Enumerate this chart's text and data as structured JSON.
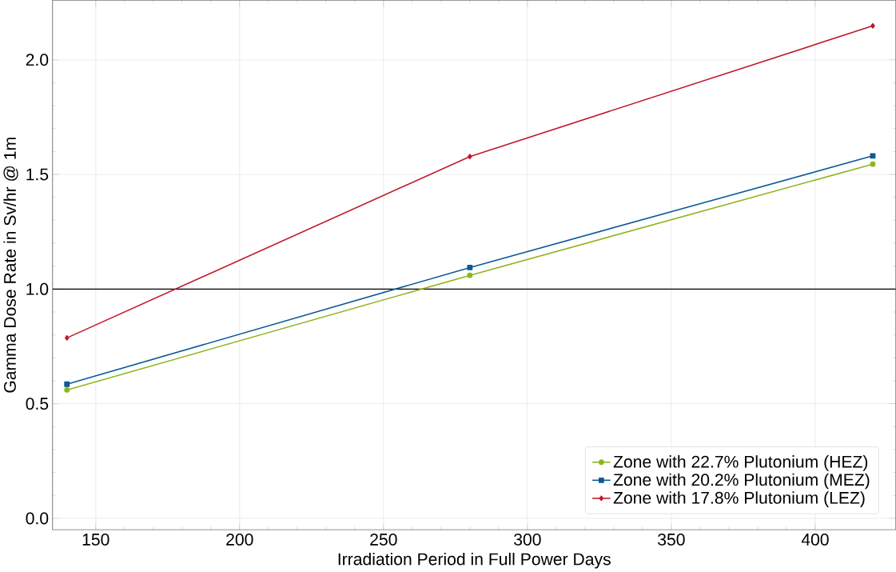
{
  "chart_data": {
    "type": "line",
    "xlabel": "Irradiation Period in Full Power Days",
    "ylabel": "Gamma Dose Rate in Sv/hr @ 1m",
    "x": [
      140,
      280,
      420
    ],
    "series": [
      {
        "name": "Zone with 22.7% Plutonium (HEZ)",
        "color": "#8db51e",
        "marker": "circle",
        "values": [
          0.56,
          1.06,
          1.545
        ]
      },
      {
        "name": "Zone with 20.2% Plutonium (MEZ)",
        "color": "#0c5a96",
        "marker": "square",
        "values": [
          0.585,
          1.094,
          1.581
        ]
      },
      {
        "name": "Zone with 17.8% Plutonium (LEZ)",
        "color": "#c0182a",
        "marker": "diamond",
        "values": [
          0.787,
          1.578,
          2.148
        ]
      }
    ],
    "xlim": [
      135,
      428
    ],
    "ylim": [
      -0.05,
      2.26
    ],
    "xticks": [
      150,
      200,
      250,
      300,
      350,
      400
    ],
    "yticks": [
      {
        "value": 0,
        "label": "0.0"
      },
      {
        "value": 0.5,
        "label": "0.5"
      },
      {
        "value": 1,
        "label": "1.0"
      },
      {
        "value": 1.5,
        "label": "1.5"
      },
      {
        "value": 2,
        "label": "2.0"
      }
    ],
    "ref_lines": [
      {
        "axis": "y",
        "value": 1.0,
        "color": "#000000"
      }
    ],
    "grid": true,
    "legend": "bottom right",
    "line_style": "solid"
  }
}
